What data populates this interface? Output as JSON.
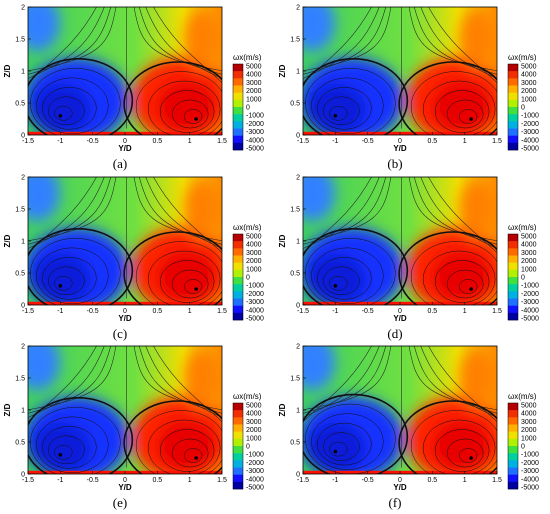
{
  "colorbar": {
    "title": "ωx(m/s)",
    "ticks": [
      "5000",
      "4000",
      "3000",
      "2000",
      "1000",
      "0",
      "-1000",
      "-2000",
      "-3000",
      "-4000",
      "-5000"
    ],
    "colors": [
      "#b40000",
      "#f03000",
      "#ff6a00",
      "#ffb000",
      "#f0e000",
      "#b0f000",
      "#40e040",
      "#00d0a0",
      "#00b0e0",
      "#2070ff",
      "#1010ff",
      "#0000a0"
    ]
  },
  "chart_data": [
    {
      "type": "heatmap",
      "caption": "(a)",
      "xlabel": "Y/D",
      "ylabel": "Z/D",
      "xlim": [
        -1.5,
        1.5
      ],
      "ylim": [
        0,
        2
      ],
      "x_ticks": [
        "-1.5",
        "-1",
        "-0.5",
        "0",
        "0.5",
        "1",
        "1.5"
      ],
      "y_ticks": [
        "0",
        "0.5",
        "1",
        "1.5",
        "2"
      ],
      "vortex_centers": [
        [
          -1.0,
          0.3
        ],
        [
          1.1,
          0.25
        ]
      ]
    },
    {
      "type": "heatmap",
      "caption": "(b)",
      "xlabel": "Y/D",
      "ylabel": "Z/D",
      "xlim": [
        -1.5,
        1.5
      ],
      "ylim": [
        0,
        2
      ],
      "x_ticks": [
        "-1.5",
        "-1",
        "-0.5",
        "0",
        "0.5",
        "1",
        "1.5"
      ],
      "y_ticks": [
        "0",
        "0.5",
        "1",
        "1.5",
        "2"
      ],
      "vortex_centers": [
        [
          -1.0,
          0.3
        ],
        [
          1.1,
          0.25
        ]
      ]
    },
    {
      "type": "heatmap",
      "caption": "(c)",
      "xlabel": "Y/D",
      "ylabel": "Z/D",
      "xlim": [
        -1.5,
        1.5
      ],
      "ylim": [
        0,
        2
      ],
      "x_ticks": [
        "-1.5",
        "-1",
        "-0.5",
        "0",
        "0.5",
        "1",
        "1.5"
      ],
      "y_ticks": [
        "0",
        "0.5",
        "1",
        "1.5",
        "2"
      ],
      "vortex_centers": [
        [
          -1.0,
          0.3
        ],
        [
          1.1,
          0.25
        ]
      ]
    },
    {
      "type": "heatmap",
      "caption": "(d)",
      "xlabel": "Y/D",
      "ylabel": "Z/D",
      "xlim": [
        -1.5,
        1.5
      ],
      "ylim": [
        0,
        2
      ],
      "x_ticks": [
        "-1.5",
        "-1",
        "-0.5",
        "0",
        "0.5",
        "1",
        "1.5"
      ],
      "y_ticks": [
        "0",
        "0.5",
        "1",
        "1.5",
        "2"
      ],
      "vortex_centers": [
        [
          -1.0,
          0.3
        ],
        [
          1.1,
          0.25
        ]
      ]
    },
    {
      "type": "heatmap",
      "caption": "(e)",
      "xlabel": "Y/D",
      "ylabel": "Z/D",
      "xlim": [
        -1.5,
        1.5
      ],
      "ylim": [
        0,
        2
      ],
      "x_ticks": [
        "-1.5",
        "-1",
        "-0.5",
        "0",
        "0.5",
        "1",
        "1.5"
      ],
      "y_ticks": [
        "0",
        "0.5",
        "1",
        "1.5",
        "2"
      ],
      "vortex_centers": [
        [
          -1.0,
          0.3
        ],
        [
          1.1,
          0.25
        ]
      ]
    },
    {
      "type": "heatmap",
      "caption": "(f)",
      "xlabel": "Y/D",
      "ylabel": "Z/D",
      "xlim": [
        -1.5,
        1.5
      ],
      "ylim": [
        0,
        2
      ],
      "x_ticks": [
        "-1.5",
        "-1",
        "-0.5",
        "0",
        "0.5",
        "1",
        "1.5"
      ],
      "y_ticks": [
        "0",
        "0.5",
        "1",
        "1.5",
        "2"
      ],
      "vortex_centers": [
        [
          -1.0,
          0.35
        ],
        [
          1.1,
          0.25
        ]
      ]
    }
  ]
}
